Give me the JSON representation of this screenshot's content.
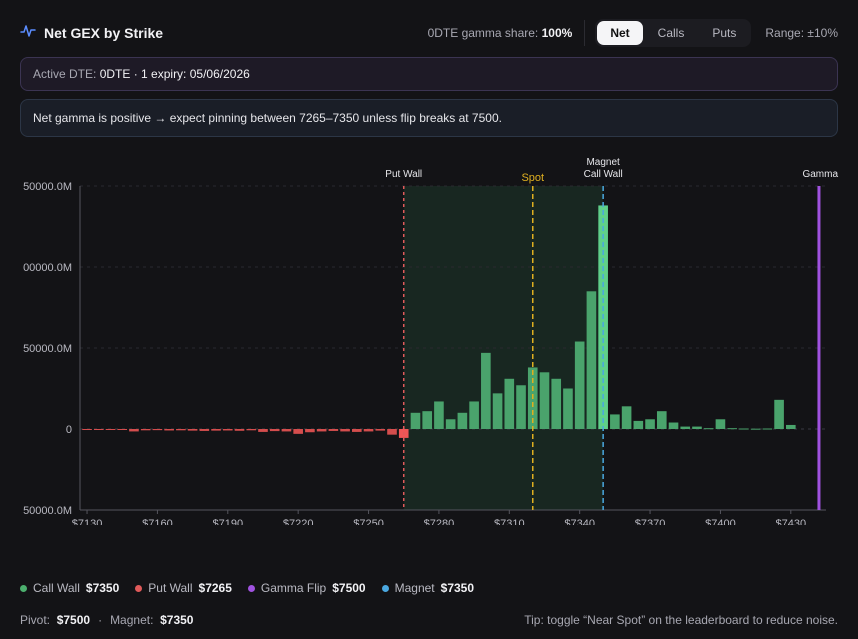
{
  "header": {
    "title": "Net GEX by Strike",
    "icon": "activity-icon",
    "gamma_share_label": "0DTE gamma share:",
    "gamma_share_value": "100%",
    "modes": [
      "Net",
      "Calls",
      "Puts"
    ],
    "active_mode": "Net",
    "range_label": "Range: ±10%"
  },
  "dte": {
    "label": "Active DTE:",
    "value": "0DTE · 1 expiry: 05/06/2026"
  },
  "message": "Net gamma is positive → expect pinning between 7265–7350 unless flip breaks at 7500.",
  "chart_data": {
    "type": "bar",
    "x": [
      7130,
      7135,
      7140,
      7145,
      7150,
      7155,
      7160,
      7165,
      7170,
      7175,
      7180,
      7185,
      7190,
      7195,
      7200,
      7205,
      7210,
      7215,
      7220,
      7225,
      7230,
      7235,
      7240,
      7245,
      7250,
      7255,
      7260,
      7265,
      7270,
      7275,
      7280,
      7285,
      7290,
      7295,
      7300,
      7305,
      7310,
      7315,
      7320,
      7325,
      7330,
      7335,
      7340,
      7345,
      7350,
      7355,
      7360,
      7365,
      7370,
      7375,
      7380,
      7385,
      7390,
      7395,
      7400,
      7405,
      7410,
      7415,
      7420,
      7425,
      7430
    ],
    "values": [
      -200,
      -200,
      -300,
      -500,
      -1500,
      -800,
      -700,
      -900,
      -800,
      -1000,
      -1200,
      -1000,
      -900,
      -1100,
      -800,
      -1800,
      -1300,
      -1500,
      -3000,
      -2000,
      -1500,
      -1200,
      -1500,
      -1800,
      -1500,
      -1000,
      -3500,
      -5500,
      10000,
      11000,
      17000,
      6000,
      10000,
      17000,
      47000,
      22000,
      31000,
      27000,
      38000,
      35000,
      31000,
      25000,
      54000,
      85000,
      138000,
      9000,
      14000,
      5000,
      6000,
      11000,
      4000,
      1500,
      1500,
      500,
      6000,
      500,
      300,
      200,
      300,
      18000,
      2500
    ],
    "xlabel": "",
    "ylabel": "",
    "xticks": [
      "$7130",
      "$7160",
      "$7190",
      "$7220",
      "$7250",
      "$7280",
      "$7310",
      "$7340",
      "$7370",
      "$7400",
      "$7430"
    ],
    "yticks": [
      "50000.0M",
      "00000.0M",
      "50000.0M",
      "0",
      "50000.0M"
    ],
    "ylim": [
      -50000,
      150000
    ],
    "xlim": [
      7127,
      7445
    ],
    "pinning_zone": [
      7265,
      7350
    ],
    "markers": [
      {
        "label": "Put Wall",
        "x": 7265,
        "color": "#e05a5a",
        "style": "dotted"
      },
      {
        "label": "Spot",
        "x": 7320,
        "color": "#e0b020",
        "style": "dashed"
      },
      {
        "label": "Magnet",
        "label2": "Call Wall",
        "x": 7350,
        "color": "#4aa8e0",
        "style": "dashed"
      },
      {
        "label": "Gamma",
        "x": 7442,
        "color": "#a052e0",
        "style": "solid"
      }
    ],
    "grid": true,
    "colors": {
      "positive": "#4aa36c",
      "negative": "#d44d4d",
      "call_wall": "#5fd08a",
      "put_wall": "#f05656"
    }
  },
  "legend": [
    {
      "name": "Call Wall",
      "value": "$7350",
      "color": "#4caf6e"
    },
    {
      "name": "Put Wall",
      "value": "$7265",
      "color": "#e05a5a"
    },
    {
      "name": "Gamma Flip",
      "value": "$7500",
      "color": "#a052e0"
    },
    {
      "name": "Magnet",
      "value": "$7350",
      "color": "#4aa8e0"
    }
  ],
  "footer": {
    "pivot_label": "Pivot:",
    "pivot_value": "$7500",
    "sep": "·",
    "magnet_label": "Magnet:",
    "magnet_value": "$7350",
    "tip": "Tip: toggle “Near Spot” on the leaderboard to reduce noise."
  }
}
